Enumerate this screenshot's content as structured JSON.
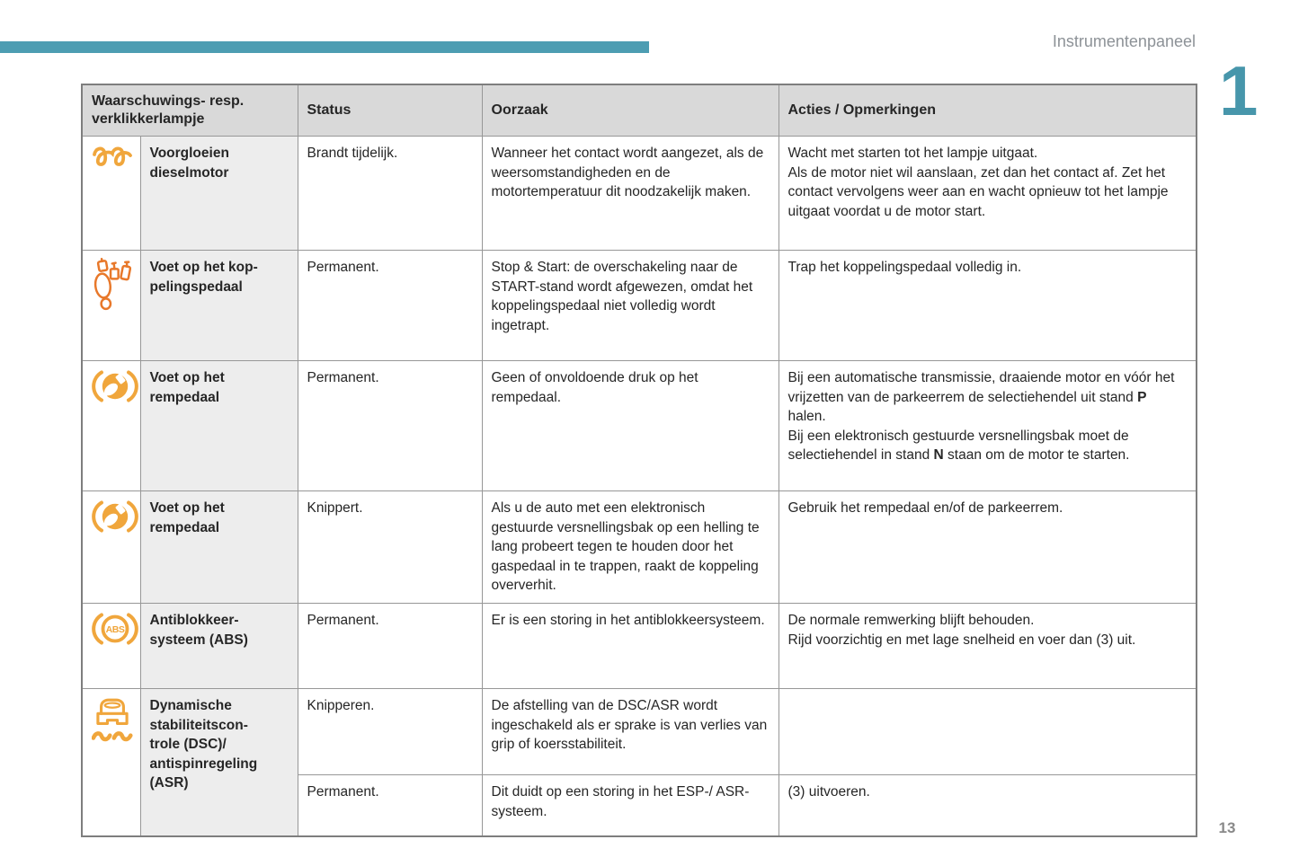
{
  "page": {
    "header_label": "Instrumentenpaneel",
    "chapter_number": "1",
    "page_number": "13",
    "accent_color": "#4d9db2",
    "icon_amber_color": "#f0a63c",
    "icon_orange_color": "#e8782a"
  },
  "table": {
    "headers": {
      "indicator": "Waarschuwings- resp. verklikkerlampje",
      "status": "Status",
      "cause": "Oorzaak",
      "actions": "Acties / Opmerkingen"
    },
    "rows": [
      {
        "icon": "glow-plug-icon",
        "name_html": "Voorgloeien<br>dieselmotor",
        "status_html": "Brandt tijdelijk.",
        "cause_html": "Wanneer het contact wordt aangezet, als de weersomstandigheden en de motortemperatuur dit noodzakelijk maken.",
        "actions_html": "Wacht met starten tot het lampje uitgaat.<br>Als de motor niet wil aanslaan, zet dan het contact af. Zet het contact vervolgens weer aan en wacht opnieuw tot het lampje uitgaat voordat u de motor start."
      },
      {
        "icon": "clutch-pedal-icon",
        "name_html": "Voet op het kop-<br>pelingspedaal",
        "status_html": "Permanent.",
        "cause_html": "Stop &amp; Start: de overschakeling naar de START-stand wordt afgewezen, omdat het koppelingspedaal niet volledig wordt ingetrapt.",
        "actions_html": "Trap het koppelingspedaal volledig in."
      },
      {
        "icon": "brake-pedal-icon",
        "name_html": "Voet op het<br>rempedaal",
        "status_html": "Permanent.",
        "cause_html": "Geen of onvoldoende druk op het rempedaal.",
        "actions_html": "Bij een automatische transmissie, draaiende motor en vóór het vrijzetten van de parkeerrem de selectiehendel uit stand <b>P</b> halen.<br>Bij een elektronisch gestuurde versnellingsbak moet de selectiehendel in stand <b>N</b> staan om de motor te starten."
      },
      {
        "icon": "brake-pedal-icon",
        "name_html": "Voet op het<br>rempedaal",
        "status_html": "Knippert.",
        "cause_html": "Als u de auto met een elektronisch gestuurde versnellingsbak op een helling te lang probeert tegen te houden door het gaspedaal in te trappen, raakt de koppeling oververhit.",
        "actions_html": "Gebruik het rempedaal en/of de parkeerrem."
      },
      {
        "icon": "abs-icon",
        "name_html": "Antiblokkeer-<br>systeem (ABS)",
        "status_html": "Permanent.",
        "cause_html": "Er is een storing in het antiblokkeersysteem.",
        "actions_html": "De normale remwerking blijft behouden.<br>Rijd voorzichtig en met lage snelheid en voer dan (3) uit."
      },
      {
        "icon": "stability-control-icon",
        "name_html": "Dynamische<br>stabiliteitscon-<br>trole (DSC)/<br>antispinregeling<br>(ASR)",
        "sub_rows": [
          {
            "status_html": "Knipperen.",
            "cause_html": "De afstelling van de DSC/ASR wordt ingeschakeld als er sprake is van verlies van grip of koersstabiliteit.",
            "actions_html": ""
          },
          {
            "status_html": "Permanent.",
            "cause_html": "Dit duidt op een storing in het ESP-/ ASR-systeem.",
            "actions_html": "(3) uitvoeren."
          }
        ]
      }
    ],
    "abs_icon_label": "ABS"
  }
}
